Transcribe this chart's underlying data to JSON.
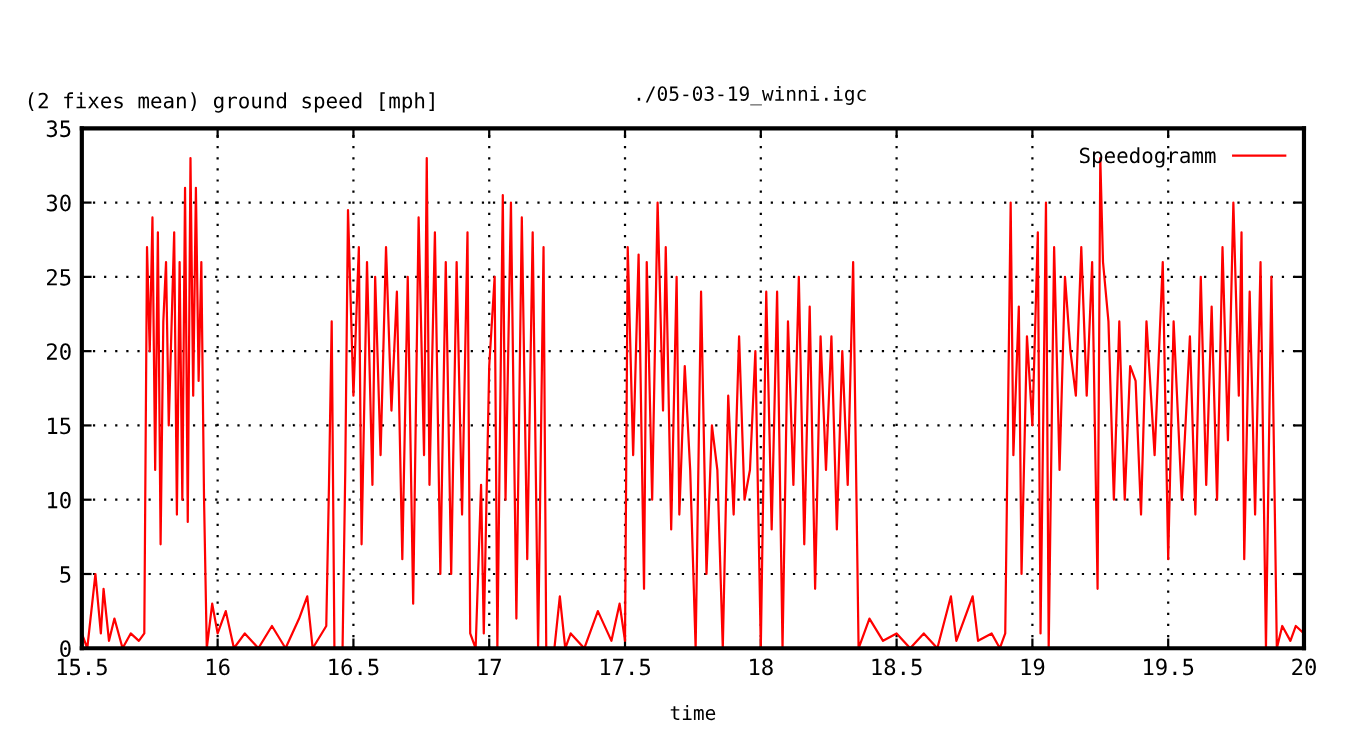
{
  "chart_data": {
    "type": "line",
    "title": "./05-03-19_winni.igc",
    "ylabel": "(2 fixes mean) ground speed [mph]",
    "xlabel": "time",
    "xlim": [
      15.5,
      20
    ],
    "xticks": [
      15.5,
      16,
      16.5,
      17,
      17.5,
      18,
      18.5,
      19,
      19.5,
      20
    ],
    "ylim": [
      0,
      35
    ],
    "yticks": [
      0,
      5,
      10,
      15,
      20,
      25,
      30,
      35
    ],
    "grid": true,
    "legend": "top right",
    "marker": "none",
    "line_style": "solid",
    "series": [
      {
        "name": "Speedogramm",
        "color": "#ff0000",
        "x": [
          15.5,
          15.52,
          15.55,
          15.57,
          15.58,
          15.6,
          15.62,
          15.65,
          15.68,
          15.71,
          15.73,
          15.74,
          15.75,
          15.76,
          15.77,
          15.78,
          15.79,
          15.8,
          15.81,
          15.82,
          15.84,
          15.85,
          15.86,
          15.87,
          15.88,
          15.89,
          15.9,
          15.91,
          15.92,
          15.93,
          15.94,
          15.95,
          15.96,
          15.98,
          16.0,
          16.03,
          16.06,
          16.1,
          16.15,
          16.2,
          16.25,
          16.3,
          16.33,
          16.35,
          16.4,
          16.41,
          16.42,
          16.43,
          16.46,
          16.47,
          16.48,
          16.5,
          16.52,
          16.53,
          16.55,
          16.57,
          16.58,
          16.6,
          16.62,
          16.64,
          16.66,
          16.68,
          16.7,
          16.72,
          16.74,
          16.76,
          16.77,
          16.78,
          16.8,
          16.82,
          16.84,
          16.86,
          16.88,
          16.9,
          16.92,
          16.93,
          16.95,
          16.97,
          16.98,
          17.0,
          17.02,
          17.03,
          17.05,
          17.06,
          17.08,
          17.1,
          17.12,
          17.14,
          17.16,
          17.18,
          17.2,
          17.21,
          17.24,
          17.26,
          17.28,
          17.3,
          17.35,
          17.4,
          17.45,
          17.48,
          17.5,
          17.51,
          17.53,
          17.55,
          17.57,
          17.58,
          17.6,
          17.62,
          17.64,
          17.65,
          17.67,
          17.69,
          17.7,
          17.72,
          17.74,
          17.76,
          17.78,
          17.8,
          17.82,
          17.84,
          17.86,
          17.88,
          17.9,
          17.92,
          17.94,
          17.96,
          17.98,
          18.0,
          18.02,
          18.04,
          18.06,
          18.08,
          18.1,
          18.12,
          18.14,
          18.16,
          18.18,
          18.2,
          18.22,
          18.24,
          18.26,
          18.28,
          18.3,
          18.32,
          18.34,
          18.36,
          18.4,
          18.45,
          18.5,
          18.55,
          18.6,
          18.65,
          18.7,
          18.72,
          18.78,
          18.8,
          18.85,
          18.88,
          18.9,
          18.92,
          18.93,
          18.95,
          18.96,
          18.98,
          19.0,
          19.02,
          19.03,
          19.05,
          19.06,
          19.08,
          19.1,
          19.12,
          19.14,
          19.16,
          19.18,
          19.2,
          19.22,
          19.24,
          19.25,
          19.26,
          19.28,
          19.3,
          19.32,
          19.34,
          19.36,
          19.38,
          19.4,
          19.42,
          19.45,
          19.48,
          19.5,
          19.52,
          19.55,
          19.58,
          19.6,
          19.62,
          19.64,
          19.66,
          19.68,
          19.7,
          19.72,
          19.74,
          19.76,
          19.77,
          19.78,
          19.8,
          19.82,
          19.84,
          19.86,
          19.88,
          19.9,
          19.92,
          19.95,
          19.97,
          20.0
        ],
        "values": [
          1,
          0,
          5,
          1,
          4,
          0.5,
          2,
          0,
          1,
          0.5,
          1,
          27,
          20,
          29,
          12,
          28,
          7,
          22,
          26,
          15,
          28,
          9,
          26,
          10,
          31,
          8.5,
          33,
          17,
          31,
          18,
          26,
          10,
          0,
          3,
          1,
          2.5,
          0,
          1,
          0,
          1.5,
          0,
          2,
          3.5,
          0,
          1.5,
          11,
          22,
          0,
          0,
          12,
          29.5,
          17,
          27,
          7,
          26,
          11,
          25,
          13,
          27,
          16,
          24,
          6,
          25,
          3,
          29,
          13,
          33,
          11,
          28,
          5,
          26,
          5,
          26,
          9,
          28,
          1,
          0,
          11,
          1,
          19,
          25,
          0,
          30.5,
          10,
          30,
          2,
          29,
          6,
          28,
          0,
          27,
          0,
          0,
          3.5,
          0,
          1,
          0,
          2.5,
          0.5,
          3,
          0.5,
          27,
          13,
          26.5,
          4,
          26,
          10,
          30,
          16,
          27,
          8,
          25,
          9,
          19,
          12,
          0,
          24,
          5,
          15,
          12,
          0,
          17,
          9,
          21,
          10,
          12,
          20,
          0,
          24,
          8,
          24,
          0,
          22,
          11,
          25,
          7,
          23,
          4,
          21,
          12,
          21,
          8,
          20,
          11,
          26,
          0,
          2,
          0.5,
          1,
          0,
          1,
          0,
          3.5,
          0.5,
          3.5,
          0.5,
          1,
          0,
          1,
          30,
          13,
          23,
          5,
          21,
          15,
          28,
          1,
          30,
          0,
          27,
          12,
          25,
          20,
          17,
          27,
          17,
          26,
          4,
          33,
          26,
          22,
          10,
          22,
          10,
          19,
          18,
          9,
          22,
          13,
          26,
          6,
          22,
          10,
          21,
          9,
          25,
          11,
          23,
          10,
          27,
          14,
          30,
          17,
          28,
          6,
          24,
          9,
          26,
          0,
          25,
          0,
          1.5,
          0.5,
          1.5,
          1
        ]
      }
    ]
  }
}
